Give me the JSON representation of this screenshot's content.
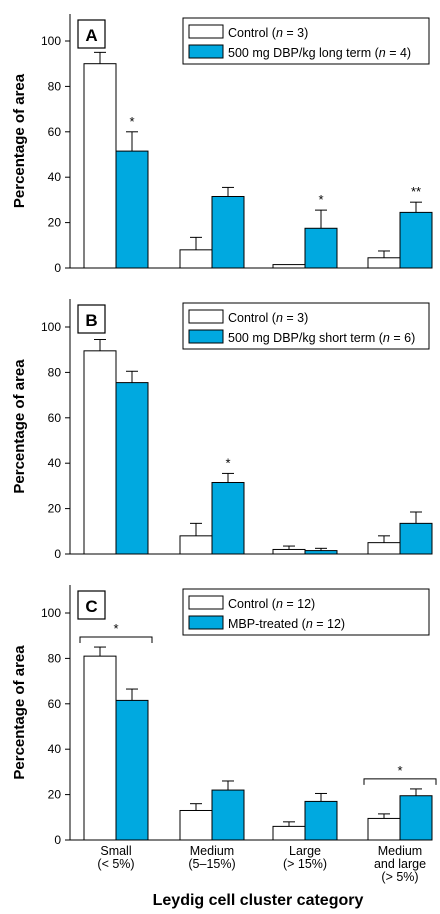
{
  "figure": {
    "xlabel": "Leydig cell cluster category",
    "ylabel": "Percentage of area",
    "category_labels": [
      [
        "Small",
        "(< 5%)"
      ],
      [
        "Medium",
        "(5–15%)"
      ],
      [
        "Large",
        "(> 15%)"
      ],
      [
        "Medium",
        "and large",
        "(> 5%)"
      ]
    ],
    "colors": {
      "control": "#ffffff",
      "treated": "#00a9e0",
      "stroke": "#000000"
    }
  },
  "chart_data": [
    {
      "type": "bar",
      "panel": "A",
      "categories": [
        "Small (< 5%)",
        "Medium (5–15%)",
        "Large (> 15%)",
        "Medium and large (> 5%)"
      ],
      "series": [
        {
          "key": "control",
          "legend_prefix": "Control (",
          "legend_n": "n",
          "legend_suffix": " = 3)",
          "values": [
            90,
            8,
            1.5,
            4.5
          ],
          "errors": [
            5,
            5.5,
            0,
            3
          ]
        },
        {
          "key": "treated",
          "legend_prefix": "500 mg DBP/kg long term (",
          "legend_n": "n",
          "legend_suffix": " = 4)",
          "values": [
            51.5,
            31.5,
            17.5,
            24.5
          ],
          "errors": [
            8.5,
            4,
            8,
            4.5
          ]
        }
      ],
      "significance": [
        {
          "category": 0,
          "label": "*"
        },
        {
          "category": 2,
          "label": "*"
        },
        {
          "category": 3,
          "label": "**"
        }
      ],
      "yticks": [
        0,
        20,
        40,
        60,
        80,
        100
      ],
      "ylim": [
        0,
        115
      ]
    },
    {
      "type": "bar",
      "panel": "B",
      "categories": [
        "Small (< 5%)",
        "Medium (5–15%)",
        "Large (> 15%)",
        "Medium and large (> 5%)"
      ],
      "series": [
        {
          "key": "control",
          "legend_prefix": "Control (",
          "legend_n": "n",
          "legend_suffix": " = 3)",
          "values": [
            89.5,
            8,
            2,
            5
          ],
          "errors": [
            5,
            5.5,
            1.5,
            3
          ]
        },
        {
          "key": "treated",
          "legend_prefix": "500 mg DBP/kg short term (",
          "legend_n": "n",
          "legend_suffix": " = 6)",
          "values": [
            75.5,
            31.5,
            1.5,
            13.5
          ],
          "errors": [
            5,
            4,
            1,
            5
          ]
        }
      ],
      "significance": [
        {
          "category": 1,
          "label": "*"
        }
      ],
      "yticks": [
        0,
        20,
        40,
        60,
        80,
        100
      ],
      "ylim": [
        0,
        115
      ]
    },
    {
      "type": "bar",
      "panel": "C",
      "categories": [
        "Small (< 5%)",
        "Medium (5–15%)",
        "Large (> 15%)",
        "Medium and large (> 5%)"
      ],
      "series": [
        {
          "key": "control",
          "legend_prefix": "Control (",
          "legend_n": "n",
          "legend_suffix": " = 12)",
          "values": [
            81,
            13,
            6,
            9.5
          ],
          "errors": [
            4,
            3,
            2,
            2
          ]
        },
        {
          "key": "treated",
          "legend_prefix": "MBP-treated (",
          "legend_n": "n",
          "legend_suffix": " = 12)",
          "values": [
            61.5,
            22,
            17,
            19.5
          ],
          "errors": [
            5,
            4,
            3.5,
            3
          ]
        }
      ],
      "significance_brackets": [
        {
          "category": 0,
          "label": "*"
        },
        {
          "category": 3,
          "label": "*"
        }
      ],
      "yticks": [
        0,
        20,
        40,
        60,
        80,
        100
      ],
      "ylim": [
        0,
        115
      ]
    }
  ]
}
